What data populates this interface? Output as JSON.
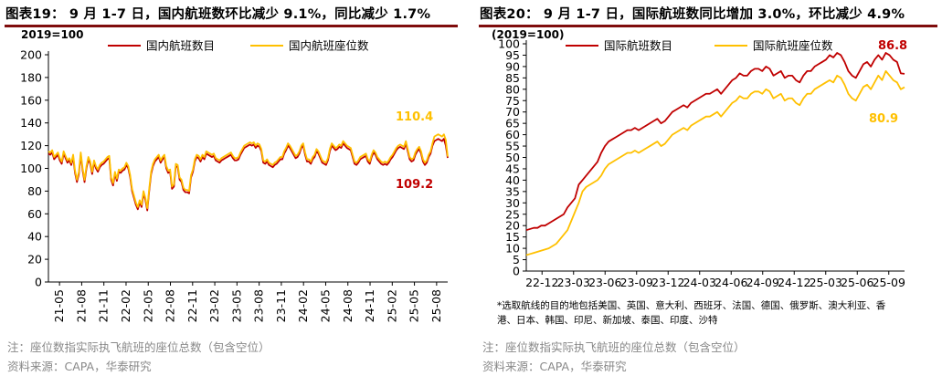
{
  "left": {
    "title": "图表19： 9 月 1-7 日，国内航班数环比减少 9.1%，同比减少 1.7%",
    "footnote_note": "注：座位数指实际执飞航班的座位总数（包含空位）",
    "footnote_source": "资料来源：CAPA，华泰研究"
  },
  "right": {
    "title": "图表20： 9 月 1-7 日，国际航班数同比增加 3.0%，环比减少 4.9%",
    "footnote_note": "注：座位数指实际执飞航班的座位总数（包含空位）",
    "footnote_source": "资料来源：CAPA，华泰研究"
  },
  "colors": {
    "red": "#c00000",
    "yellow": "#ffc000",
    "title_rule": "#7f0c0c",
    "grey_text": "#888888"
  },
  "chart_data": [
    {
      "type": "line",
      "unit_label": "2019=100",
      "ylim": [
        0,
        200
      ],
      "yticks": [
        0,
        20,
        40,
        60,
        80,
        100,
        120,
        140,
        160,
        180,
        200
      ],
      "xticks": [
        "21-05",
        "21-08",
        "21-11",
        "22-02",
        "22-05",
        "22-08",
        "22-11",
        "23-02",
        "23-05",
        "23-08",
        "23-11",
        "24-02",
        "24-05",
        "24-08",
        "24-11",
        "25-02",
        "25-05",
        "25-08"
      ],
      "legend_position": "top",
      "series": [
        {
          "name": "国内航班数目",
          "color": "#c00000",
          "values": [
            113,
            112,
            114,
            108,
            110,
            112,
            107,
            104,
            113,
            109,
            105,
            107,
            103,
            110,
            96,
            88,
            95,
            112,
            98,
            88,
            100,
            108,
            104,
            95,
            105,
            100,
            97,
            101,
            103,
            104,
            106,
            108,
            109,
            90,
            85,
            95,
            89,
            97,
            96,
            98,
            99,
            103,
            100,
            92,
            80,
            74,
            68,
            64,
            70,
            66,
            78,
            72,
            63,
            80,
            95,
            102,
            106,
            108,
            110,
            105,
            108,
            110,
            100,
            96,
            97,
            82,
            84,
            102,
            101,
            90,
            88,
            81,
            79,
            79,
            78,
            92,
            97,
            106,
            110,
            109,
            106,
            110,
            108,
            113,
            112,
            111,
            110,
            111,
            107,
            106,
            105,
            107,
            108,
            109,
            110,
            111,
            112,
            109,
            107,
            107,
            108,
            112,
            115,
            118,
            119,
            120,
            121,
            120,
            121,
            118,
            120,
            119,
            115,
            105,
            104,
            106,
            103,
            102,
            101,
            103,
            104,
            106,
            108,
            108,
            113,
            116,
            120,
            118,
            115,
            112,
            109,
            110,
            113,
            118,
            120,
            112,
            106,
            106,
            104,
            108,
            110,
            115,
            113,
            109,
            105,
            104,
            103,
            107,
            115,
            120,
            118,
            116,
            117,
            119,
            118,
            122,
            120,
            118,
            117,
            116,
            110,
            104,
            103,
            105,
            108,
            109,
            110,
            111,
            106,
            104,
            110,
            114,
            112,
            108,
            106,
            104,
            103,
            104,
            103,
            105,
            108,
            110,
            113,
            116,
            118,
            119,
            118,
            117,
            122,
            115,
            108,
            106,
            107,
            112,
            115,
            117,
            113,
            106,
            103,
            105,
            110,
            113,
            120,
            124,
            125,
            126,
            125,
            124,
            126,
            120,
            109.2
          ]
        },
        {
          "name": "国内航班座位数",
          "color": "#ffc000",
          "values": [
            115,
            114,
            116,
            110,
            112,
            114,
            109,
            106,
            115,
            111,
            107,
            109,
            105,
            112,
            98,
            90,
            97,
            114,
            100,
            90,
            102,
            110,
            106,
            97,
            107,
            102,
            99,
            103,
            105,
            106,
            108,
            110,
            111,
            92,
            87,
            97,
            91,
            99,
            98,
            100,
            101,
            105,
            102,
            94,
            82,
            76,
            70,
            66,
            72,
            68,
            80,
            74,
            65,
            82,
            97,
            104,
            108,
            110,
            112,
            107,
            110,
            112,
            102,
            98,
            99,
            84,
            86,
            104,
            103,
            92,
            90,
            83,
            81,
            81,
            80,
            94,
            99,
            108,
            112,
            111,
            108,
            112,
            110,
            115,
            114,
            113,
            112,
            113,
            109,
            108,
            107,
            109,
            110,
            111,
            112,
            113,
            114,
            111,
            109,
            109,
            110,
            114,
            117,
            120,
            121,
            122,
            123,
            122,
            123,
            120,
            122,
            121,
            117,
            107,
            106,
            108,
            105,
            104,
            103,
            105,
            106,
            108,
            110,
            110,
            115,
            118,
            122,
            120,
            117,
            114,
            111,
            112,
            115,
            120,
            122,
            114,
            108,
            108,
            106,
            110,
            112,
            117,
            115,
            111,
            107,
            106,
            105,
            109,
            117,
            122,
            120,
            118,
            119,
            121,
            120,
            124,
            122,
            120,
            119,
            118,
            112,
            106,
            105,
            107,
            110,
            111,
            112,
            113,
            108,
            106,
            112,
            116,
            114,
            110,
            108,
            106,
            105,
            106,
            105,
            107,
            110,
            112,
            115,
            118,
            120,
            121,
            120,
            119,
            124,
            117,
            110,
            108,
            109,
            114,
            117,
            119,
            115,
            108,
            105,
            107,
            112,
            115,
            122,
            128,
            129,
            130,
            129,
            128,
            130,
            125,
            110.4
          ]
        }
      ],
      "annotations": [
        {
          "text": "110.4",
          "color": "#ffc000"
        },
        {
          "text": "109.2",
          "color": "#c00000"
        }
      ]
    },
    {
      "type": "line",
      "unit_label": "(2019=100)",
      "ylim": [
        0,
        100
      ],
      "yticks": [
        0,
        5,
        10,
        15,
        20,
        25,
        30,
        35,
        40,
        45,
        50,
        55,
        60,
        65,
        70,
        75,
        80,
        85,
        90,
        95,
        100
      ],
      "xticks": [
        "22-12",
        "23-03",
        "23-06",
        "23-09",
        "23-12",
        "24-03",
        "24-06",
        "24-09",
        "24-12",
        "25-03",
        "25-06",
        "25-09"
      ],
      "legend_position": "top",
      "footnote_in_plot": "*选取航线的目的地包括美国、英国、意大利、西班牙、法国、德国、俄罗斯、澳大利亚、香港、日本、韩国、印尼、新加坡、泰国、印度、沙特",
      "series": [
        {
          "name": "国际航班数目",
          "color": "#c00000",
          "values": [
            18,
            18.5,
            19,
            19,
            20,
            20,
            21,
            22,
            23,
            24,
            25,
            28,
            30,
            32,
            38,
            40,
            42,
            44,
            46,
            48,
            52,
            55,
            57,
            58,
            59,
            60,
            61,
            62,
            62,
            63,
            62,
            63,
            64,
            65,
            66,
            67,
            65,
            66,
            68,
            70,
            71,
            72,
            73,
            72,
            74,
            75,
            76,
            77,
            78,
            78,
            79,
            80,
            78,
            80,
            82,
            84,
            85,
            87,
            86,
            86,
            88,
            89,
            89,
            88,
            90,
            89,
            86,
            87,
            88,
            85,
            86,
            86,
            84,
            83,
            86,
            88,
            88,
            90,
            91,
            92,
            93,
            95,
            94,
            96,
            95,
            92,
            88,
            86,
            85,
            88,
            91,
            92,
            90,
            93,
            95,
            93,
            96,
            95,
            93,
            92,
            87,
            86.8
          ]
        },
        {
          "name": "国际航班座位数",
          "color": "#ffc000",
          "values": [
            7,
            7.5,
            8,
            8.5,
            9,
            9.5,
            10,
            11,
            12,
            14,
            16,
            18,
            22,
            26,
            30,
            35,
            37,
            38,
            39,
            40,
            42,
            45,
            47,
            48,
            49,
            50,
            51,
            52,
            52,
            53,
            52,
            53,
            54,
            55,
            56,
            57,
            55,
            56,
            58,
            60,
            61,
            62,
            63,
            62,
            64,
            65,
            66,
            67,
            68,
            68,
            69,
            70,
            68,
            70,
            72,
            74,
            75,
            77,
            76,
            76,
            78,
            79,
            79,
            78,
            80,
            79,
            76,
            77,
            78,
            75,
            76,
            76,
            74,
            73,
            76,
            78,
            78,
            80,
            81,
            82,
            83,
            84,
            83,
            86,
            85,
            82,
            78,
            76,
            75,
            78,
            81,
            82,
            80,
            83,
            86,
            84,
            88,
            86,
            84,
            83,
            80,
            80.9
          ]
        }
      ],
      "annotations": [
        {
          "text": "86.8",
          "color": "#c00000"
        },
        {
          "text": "80.9",
          "color": "#ffc000"
        }
      ]
    }
  ]
}
